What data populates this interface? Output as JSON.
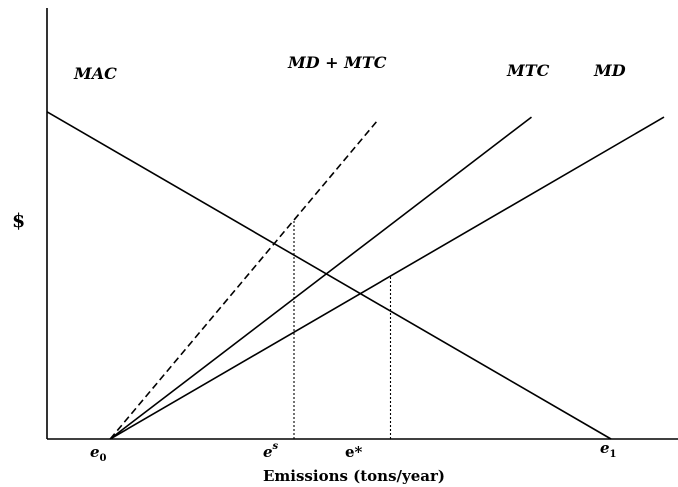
{
  "chart_data": {
    "type": "line",
    "title": "",
    "xlabel": "Emissions (tons/year)",
    "ylabel": "$",
    "xlim": [
      0,
      10
    ],
    "ylim": [
      0,
      10
    ],
    "grid": false,
    "legend": "none (curves labeled directly at their upper ends)",
    "x_ticks": {
      "e0": {
        "main": "e",
        "sub": "0",
        "sup": ""
      },
      "es": {
        "main": "e",
        "sub": "",
        "sup": "s"
      },
      "estar": {
        "main": "e*",
        "sub": "",
        "sup": ""
      },
      "e1": {
        "main": "e",
        "sub": "1",
        "sup": ""
      }
    },
    "series": [
      {
        "name": "MAC",
        "style": "solid",
        "x": [
          0.0,
          10.0
        ],
        "y": [
          9.27,
          0.0
        ]
      },
      {
        "name": "MD + MTC",
        "style": "dashed",
        "x": [
          1.12,
          5.88
        ],
        "y": [
          0.0,
          9.06
        ]
      },
      {
        "name": "MTC",
        "style": "solid",
        "x": [
          1.12,
          8.59
        ],
        "y": [
          0.0,
          9.12
        ]
      },
      {
        "name": "MD",
        "style": "solid",
        "x": [
          1.12,
          10.94
        ],
        "y": [
          0.0,
          9.12
        ]
      }
    ],
    "vertical_markers": [
      {
        "label": "e^s",
        "x": 4.38,
        "y_top": 6.21,
        "style": "dotted"
      },
      {
        "label": "e*",
        "x": 6.09,
        "y_top": 4.64,
        "style": "dotted"
      }
    ]
  }
}
